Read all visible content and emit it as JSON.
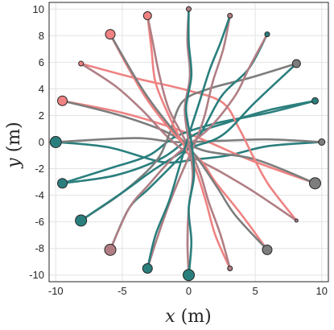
{
  "chart_data": {
    "type": "line",
    "title": "",
    "xlabel": {
      "var": "x",
      "unit": " (m)"
    },
    "ylabel": {
      "var": "y",
      "unit": " (m)"
    },
    "xlim": [
      -10.5,
      10.5
    ],
    "ylim": [
      -10.5,
      10.5
    ],
    "xticks": [
      -10,
      -5,
      0,
      5,
      10
    ],
    "yticks": [
      -10,
      -8,
      -6,
      -4,
      -2,
      0,
      2,
      4,
      6,
      8,
      10
    ],
    "grid": true,
    "colors": {
      "teal": "#2a7f7d",
      "gray": "#7d7d7d",
      "rose": "#b07e84",
      "salmon": "#ef8282"
    },
    "agents": [
      {
        "color": "teal",
        "start": [
          -10.0,
          0.0
        ],
        "goal": [
          10.0,
          0.0
        ],
        "r": 7,
        "path": [
          [
            -10.0,
            0.0
          ],
          [
            -6.0,
            -0.4
          ],
          [
            -2.0,
            -1.5
          ],
          [
            0.5,
            -1.3
          ],
          [
            3.0,
            -1.0
          ],
          [
            6.0,
            -0.3
          ],
          [
            10.0,
            0.0
          ]
        ]
      },
      {
        "color": "gray",
        "start": [
          10.0,
          0.0
        ],
        "goal": [
          -10.0,
          0.0
        ],
        "r": 4,
        "path": [
          [
            10.0,
            0.0
          ],
          [
            6.0,
            0.2
          ],
          [
            2.5,
            0.1
          ],
          [
            -1.0,
            0.0
          ],
          [
            -4.0,
            0.3
          ],
          [
            -10.0,
            0.0
          ]
        ]
      },
      {
        "color": "salmon",
        "start": [
          -9.5,
          3.1
        ],
        "goal": [
          9.5,
          -3.1
        ],
        "r": 6,
        "path": [
          [
            -9.5,
            3.1
          ],
          [
            -5.0,
            2.2
          ],
          [
            -1.0,
            1.0
          ],
          [
            1.5,
            0.0
          ],
          [
            4.5,
            -1.3
          ],
          [
            9.5,
            -3.1
          ]
        ]
      },
      {
        "color": "gray",
        "start": [
          9.5,
          -3.1
        ],
        "goal": [
          -9.5,
          3.1
        ],
        "r": 7,
        "path": [
          [
            9.5,
            -3.1
          ],
          [
            5.0,
            -1.3
          ],
          [
            1.0,
            -0.6
          ],
          [
            -2.0,
            0.9
          ],
          [
            -5.5,
            2.1
          ],
          [
            -9.5,
            3.1
          ]
        ]
      },
      {
        "color": "teal",
        "start": [
          9.5,
          3.1
        ],
        "goal": [
          -9.5,
          -3.1
        ],
        "r": 4,
        "path": [
          [
            9.5,
            3.1
          ],
          [
            6.0,
            2.4
          ],
          [
            3.0,
            1.5
          ],
          [
            0.5,
            0.6
          ],
          [
            -2.0,
            -1.2
          ],
          [
            -5.5,
            -2.5
          ],
          [
            -9.5,
            -3.1
          ]
        ]
      },
      {
        "color": "teal",
        "start": [
          -9.5,
          -3.1
        ],
        "goal": [
          9.5,
          3.1
        ],
        "r": 6,
        "path": [
          [
            -9.5,
            -3.1
          ],
          [
            -6.0,
            -2.0
          ],
          [
            -3.0,
            -1.0
          ],
          [
            -1.0,
            0.4
          ],
          [
            2.0,
            1.4
          ],
          [
            6.0,
            2.2
          ],
          [
            9.5,
            3.1
          ]
        ]
      },
      {
        "color": "salmon",
        "start": [
          -8.1,
          5.9
        ],
        "goal": [
          8.1,
          -5.9
        ],
        "r": 3,
        "path": [
          [
            -8.1,
            5.9
          ],
          [
            -4.0,
            4.8
          ],
          [
            -0.5,
            4.0
          ],
          [
            2.5,
            3.0
          ],
          [
            3.8,
            1.0
          ],
          [
            4.8,
            -1.0
          ],
          [
            6.0,
            -3.2
          ],
          [
            8.1,
            -5.9
          ]
        ]
      },
      {
        "color": "rose",
        "start": [
          8.1,
          -5.9
        ],
        "goal": [
          -8.1,
          5.9
        ],
        "r": 2,
        "path": [
          [
            8.1,
            -5.9
          ],
          [
            5.0,
            -3.8
          ],
          [
            2.5,
            -2.3
          ],
          [
            0.3,
            -1.1
          ],
          [
            -1.5,
            0.3
          ],
          [
            -3.5,
            2.4
          ],
          [
            -5.5,
            4.2
          ],
          [
            -8.1,
            5.9
          ]
        ]
      },
      {
        "color": "gray",
        "start": [
          8.1,
          5.9
        ],
        "goal": [
          -8.1,
          -5.9
        ],
        "r": 5,
        "path": [
          [
            8.1,
            5.9
          ],
          [
            4.5,
            4.8
          ],
          [
            1.5,
            4.0
          ],
          [
            -0.5,
            3.0
          ],
          [
            -1.5,
            0.5
          ],
          [
            -2.5,
            -1.5
          ],
          [
            -5.0,
            -3.8
          ],
          [
            -8.1,
            -5.9
          ]
        ]
      },
      {
        "color": "teal",
        "start": [
          -8.1,
          -5.9
        ],
        "goal": [
          8.1,
          5.9
        ],
        "r": 7,
        "path": [
          [
            -8.1,
            -5.9
          ],
          [
            -5.0,
            -3.8
          ],
          [
            -2.5,
            -2.0
          ],
          [
            0.0,
            -0.5
          ],
          [
            2.5,
            0.5
          ],
          [
            5.0,
            3.0
          ],
          [
            8.1,
            5.9
          ]
        ]
      },
      {
        "color": "salmon",
        "start": [
          -5.9,
          8.1
        ],
        "goal": [
          5.9,
          -8.1
        ],
        "r": 6,
        "path": [
          [
            -5.9,
            8.1
          ],
          [
            -4.5,
            5.5
          ],
          [
            -3.0,
            3.0
          ],
          [
            -1.0,
            0.5
          ],
          [
            1.0,
            -1.5
          ],
          [
            2.0,
            -3.0
          ],
          [
            4.0,
            -5.5
          ],
          [
            5.9,
            -8.1
          ]
        ]
      },
      {
        "color": "gray",
        "start": [
          5.9,
          -8.1
        ],
        "goal": [
          -5.9,
          8.1
        ],
        "r": 6,
        "path": [
          [
            5.9,
            -8.1
          ],
          [
            3.5,
            -5.5
          ],
          [
            2.2,
            -3.5
          ],
          [
            0.5,
            -1.0
          ],
          [
            -1.5,
            1.3
          ],
          [
            -3.5,
            4.0
          ],
          [
            -5.9,
            8.1
          ]
        ]
      },
      {
        "color": "teal",
        "start": [
          5.9,
          8.1
        ],
        "goal": [
          -5.9,
          -8.1
        ],
        "r": 3,
        "path": [
          [
            5.9,
            8.1
          ],
          [
            4.5,
            5.5
          ],
          [
            2.5,
            3.5
          ],
          [
            0.8,
            0.5
          ],
          [
            -1.0,
            -1.5
          ],
          [
            -3.0,
            -3.5
          ],
          [
            -4.5,
            -5.0
          ],
          [
            -5.9,
            -8.1
          ]
        ]
      },
      {
        "color": "rose",
        "start": [
          -5.9,
          -8.1
        ],
        "goal": [
          5.9,
          8.1
        ],
        "r": 7,
        "path": [
          [
            -5.9,
            -8.1
          ],
          [
            -4.5,
            -5.0
          ],
          [
            -3.0,
            -3.2
          ],
          [
            -1.0,
            -1.0
          ],
          [
            1.5,
            1.0
          ],
          [
            3.5,
            3.5
          ],
          [
            4.5,
            5.5
          ],
          [
            5.9,
            8.1
          ]
        ]
      },
      {
        "color": "salmon",
        "start": [
          -3.1,
          9.5
        ],
        "goal": [
          3.1,
          -9.5
        ],
        "r": 5,
        "path": [
          [
            -3.1,
            9.5
          ],
          [
            -2.8,
            7.0
          ],
          [
            -2.5,
            4.5
          ],
          [
            -1.5,
            2.0
          ],
          [
            -0.5,
            0.0
          ],
          [
            0.5,
            -2.0
          ],
          [
            1.3,
            -4.5
          ],
          [
            2.0,
            -7.0
          ],
          [
            3.1,
            -9.5
          ]
        ]
      },
      {
        "color": "rose",
        "start": [
          3.1,
          -9.5
        ],
        "goal": [
          -3.1,
          9.5
        ],
        "r": 3,
        "path": [
          [
            3.1,
            -9.5
          ],
          [
            2.4,
            -7.0
          ],
          [
            1.5,
            -4.5
          ],
          [
            0.8,
            -2.2
          ],
          [
            -0.3,
            0.2
          ],
          [
            -1.5,
            2.5
          ],
          [
            -2.2,
            5.0
          ],
          [
            -2.7,
            7.5
          ],
          [
            -3.1,
            9.5
          ]
        ]
      },
      {
        "color": "rose",
        "start": [
          3.1,
          9.5
        ],
        "goal": [
          -3.1,
          -9.5
        ],
        "r": 3,
        "path": [
          [
            3.1,
            9.5
          ],
          [
            2.6,
            7.0
          ],
          [
            1.8,
            4.5
          ],
          [
            1.2,
            2.0
          ],
          [
            0.5,
            0.0
          ],
          [
            -0.6,
            -2.5
          ],
          [
            -1.6,
            -5.0
          ],
          [
            -2.4,
            -7.3
          ],
          [
            -3.1,
            -9.5
          ]
        ]
      },
      {
        "color": "teal",
        "start": [
          -3.1,
          -9.5
        ],
        "goal": [
          3.1,
          9.5
        ],
        "r": 6,
        "path": [
          [
            -3.1,
            -9.5
          ],
          [
            -2.5,
            -7.0
          ],
          [
            -1.5,
            -4.5
          ],
          [
            -0.8,
            -2.2
          ],
          [
            0.0,
            0.5
          ],
          [
            0.8,
            3.0
          ],
          [
            1.6,
            5.5
          ],
          [
            2.4,
            7.5
          ],
          [
            3.1,
            9.5
          ]
        ]
      },
      {
        "color": "rose",
        "start": [
          0.0,
          10.0
        ],
        "goal": [
          0.0,
          -10.0
        ],
        "r": 3,
        "path": [
          [
            0.0,
            10.0
          ],
          [
            -0.1,
            7.5
          ],
          [
            0.1,
            5.0
          ],
          [
            -0.3,
            2.5
          ],
          [
            0.0,
            0.0
          ],
          [
            0.3,
            -2.5
          ],
          [
            0.0,
            -5.0
          ],
          [
            -0.1,
            -7.5
          ],
          [
            0.0,
            -10.0
          ]
        ]
      },
      {
        "color": "teal",
        "start": [
          0.0,
          -10.0
        ],
        "goal": [
          0.0,
          10.0
        ],
        "r": 7,
        "path": [
          [
            0.0,
            -10.0
          ],
          [
            0.2,
            -7.5
          ],
          [
            0.0,
            -5.0
          ],
          [
            0.4,
            -2.5
          ],
          [
            0.2,
            0.0
          ],
          [
            -0.2,
            2.5
          ],
          [
            0.2,
            5.0
          ],
          [
            0.0,
            7.5
          ],
          [
            0.0,
            10.0
          ]
        ]
      }
    ]
  }
}
